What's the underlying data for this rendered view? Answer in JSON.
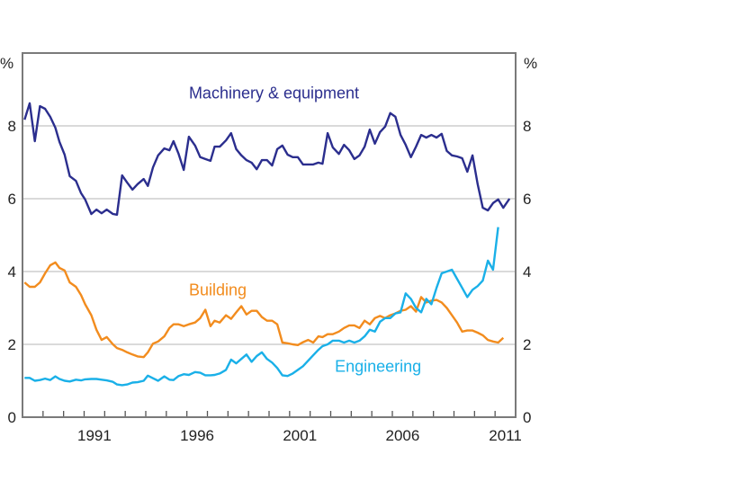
{
  "chart_data": {
    "type": "line",
    "title": "",
    "xlabel": "",
    "ylabel": "%",
    "ylabel_right": "%",
    "xlim": [
      1988.0,
      2012.0
    ],
    "ylim": [
      0,
      10
    ],
    "y_ticks": [
      0,
      2,
      4,
      6,
      8
    ],
    "y_tick_labels": [
      "0",
      "2",
      "4",
      "6",
      "8"
    ],
    "x_tick_labels": [
      {
        "label": "1991",
        "year": 1991
      },
      {
        "label": "1996",
        "year": 1996
      },
      {
        "label": "2001",
        "year": 2001
      },
      {
        "label": "2006",
        "year": 2006
      },
      {
        "label": "2011",
        "year": 2011
      }
    ],
    "x_minor_ticks_every_year": true,
    "grid": "horizontal",
    "legend": "inline labels",
    "series": [
      {
        "name": "Machinery & equipment",
        "color": "#2b2e8e",
        "label_anchor": [
          1996.1,
          8.75
        ],
        "points": [
          [
            1988.1,
            8.17
          ],
          [
            1988.35,
            8.62
          ],
          [
            1988.6,
            7.58
          ],
          [
            1988.85,
            8.54
          ],
          [
            1989.1,
            8.47
          ],
          [
            1989.35,
            8.25
          ],
          [
            1989.6,
            7.95
          ],
          [
            1989.8,
            7.56
          ],
          [
            1990.05,
            7.21
          ],
          [
            1990.3,
            6.62
          ],
          [
            1990.6,
            6.49
          ],
          [
            1990.85,
            6.15
          ],
          [
            1991.05,
            5.98
          ],
          [
            1991.35,
            5.58
          ],
          [
            1991.6,
            5.7
          ],
          [
            1991.85,
            5.6
          ],
          [
            1992.1,
            5.7
          ],
          [
            1992.4,
            5.58
          ],
          [
            1992.6,
            5.56
          ],
          [
            1992.85,
            6.64
          ],
          [
            1993.1,
            6.44
          ],
          [
            1993.35,
            6.25
          ],
          [
            1993.6,
            6.4
          ],
          [
            1993.9,
            6.54
          ],
          [
            1994.1,
            6.35
          ],
          [
            1994.35,
            6.86
          ],
          [
            1994.6,
            7.19
          ],
          [
            1994.9,
            7.38
          ],
          [
            1995.15,
            7.33
          ],
          [
            1995.35,
            7.58
          ],
          [
            1995.6,
            7.23
          ],
          [
            1995.85,
            6.79
          ],
          [
            1996.1,
            7.7
          ],
          [
            1996.4,
            7.46
          ],
          [
            1996.65,
            7.14
          ],
          [
            1996.9,
            7.09
          ],
          [
            1997.15,
            7.04
          ],
          [
            1997.35,
            7.43
          ],
          [
            1997.6,
            7.43
          ],
          [
            1997.9,
            7.6
          ],
          [
            1998.15,
            7.8
          ],
          [
            1998.4,
            7.36
          ],
          [
            1998.65,
            7.19
          ],
          [
            1998.9,
            7.06
          ],
          [
            1999.15,
            6.99
          ],
          [
            1999.4,
            6.81
          ],
          [
            1999.65,
            7.06
          ],
          [
            1999.9,
            7.06
          ],
          [
            2000.15,
            6.91
          ],
          [
            2000.4,
            7.36
          ],
          [
            2000.65,
            7.46
          ],
          [
            2000.9,
            7.21
          ],
          [
            2001.15,
            7.14
          ],
          [
            2001.4,
            7.14
          ],
          [
            2001.65,
            6.94
          ],
          [
            2001.9,
            6.94
          ],
          [
            2002.15,
            6.94
          ],
          [
            2002.4,
            6.99
          ],
          [
            2002.6,
            6.96
          ],
          [
            2002.85,
            7.8
          ],
          [
            2003.1,
            7.41
          ],
          [
            2003.4,
            7.23
          ],
          [
            2003.65,
            7.48
          ],
          [
            2003.9,
            7.33
          ],
          [
            2004.15,
            7.09
          ],
          [
            2004.4,
            7.19
          ],
          [
            2004.65,
            7.43
          ],
          [
            2004.9,
            7.9
          ],
          [
            2005.15,
            7.51
          ],
          [
            2005.4,
            7.83
          ],
          [
            2005.65,
            7.98
          ],
          [
            2005.9,
            8.35
          ],
          [
            2006.15,
            8.25
          ],
          [
            2006.4,
            7.75
          ],
          [
            2006.65,
            7.48
          ],
          [
            2006.9,
            7.14
          ],
          [
            2007.15,
            7.43
          ],
          [
            2007.4,
            7.75
          ],
          [
            2007.65,
            7.68
          ],
          [
            2007.9,
            7.75
          ],
          [
            2008.15,
            7.68
          ],
          [
            2008.4,
            7.78
          ],
          [
            2008.65,
            7.31
          ],
          [
            2008.9,
            7.19
          ],
          [
            2009.15,
            7.16
          ],
          [
            2009.4,
            7.11
          ],
          [
            2009.65,
            6.74
          ],
          [
            2009.9,
            7.19
          ],
          [
            2010.15,
            6.4
          ],
          [
            2010.4,
            5.75
          ],
          [
            2010.65,
            5.68
          ],
          [
            2010.9,
            5.88
          ],
          [
            2011.15,
            5.98
          ],
          [
            2011.4,
            5.75
          ],
          [
            2011.7,
            6.0
          ]
        ]
      },
      {
        "name": "Building",
        "color": "#f28c1e",
        "label_anchor": [
          1996.1,
          3.35
        ],
        "points": [
          [
            1988.1,
            3.7
          ],
          [
            1988.35,
            3.58
          ],
          [
            1988.6,
            3.58
          ],
          [
            1988.85,
            3.7
          ],
          [
            1989.1,
            3.95
          ],
          [
            1989.35,
            4.17
          ],
          [
            1989.6,
            4.25
          ],
          [
            1989.8,
            4.1
          ],
          [
            1990.05,
            4.03
          ],
          [
            1990.3,
            3.7
          ],
          [
            1990.6,
            3.58
          ],
          [
            1990.85,
            3.35
          ],
          [
            1991.05,
            3.1
          ],
          [
            1991.35,
            2.8
          ],
          [
            1991.6,
            2.4
          ],
          [
            1991.85,
            2.12
          ],
          [
            1992.1,
            2.2
          ],
          [
            1992.4,
            2.0
          ],
          [
            1992.6,
            1.9
          ],
          [
            1992.85,
            1.85
          ],
          [
            1993.1,
            1.78
          ],
          [
            1993.35,
            1.72
          ],
          [
            1993.6,
            1.67
          ],
          [
            1993.9,
            1.65
          ],
          [
            1994.1,
            1.78
          ],
          [
            1994.35,
            2.02
          ],
          [
            1994.6,
            2.08
          ],
          [
            1994.9,
            2.22
          ],
          [
            1995.15,
            2.45
          ],
          [
            1995.35,
            2.55
          ],
          [
            1995.6,
            2.55
          ],
          [
            1995.85,
            2.5
          ],
          [
            1996.1,
            2.55
          ],
          [
            1996.4,
            2.6
          ],
          [
            1996.65,
            2.72
          ],
          [
            1996.9,
            2.95
          ],
          [
            1997.15,
            2.5
          ],
          [
            1997.35,
            2.65
          ],
          [
            1997.6,
            2.6
          ],
          [
            1997.9,
            2.8
          ],
          [
            1998.15,
            2.7
          ],
          [
            1998.4,
            2.88
          ],
          [
            1998.65,
            3.05
          ],
          [
            1998.9,
            2.82
          ],
          [
            1999.15,
            2.92
          ],
          [
            1999.4,
            2.92
          ],
          [
            1999.65,
            2.75
          ],
          [
            1999.9,
            2.65
          ],
          [
            2000.15,
            2.65
          ],
          [
            2000.4,
            2.55
          ],
          [
            2000.65,
            2.05
          ],
          [
            2000.9,
            2.03
          ],
          [
            2001.15,
            2.0
          ],
          [
            2001.4,
            1.98
          ],
          [
            2001.65,
            2.06
          ],
          [
            2001.9,
            2.12
          ],
          [
            2002.15,
            2.05
          ],
          [
            2002.4,
            2.22
          ],
          [
            2002.6,
            2.2
          ],
          [
            2002.85,
            2.28
          ],
          [
            2003.1,
            2.28
          ],
          [
            2003.4,
            2.35
          ],
          [
            2003.65,
            2.45
          ],
          [
            2003.9,
            2.52
          ],
          [
            2004.15,
            2.52
          ],
          [
            2004.4,
            2.45
          ],
          [
            2004.65,
            2.65
          ],
          [
            2004.9,
            2.55
          ],
          [
            2005.15,
            2.72
          ],
          [
            2005.4,
            2.78
          ],
          [
            2005.65,
            2.72
          ],
          [
            2005.9,
            2.8
          ],
          [
            2006.15,
            2.85
          ],
          [
            2006.4,
            2.92
          ],
          [
            2006.65,
            2.95
          ],
          [
            2006.9,
            3.05
          ],
          [
            2007.15,
            2.9
          ],
          [
            2007.4,
            3.3
          ],
          [
            2007.65,
            3.15
          ],
          [
            2007.9,
            3.2
          ],
          [
            2008.15,
            3.22
          ],
          [
            2008.4,
            3.15
          ],
          [
            2008.65,
            3.0
          ],
          [
            2008.9,
            2.8
          ],
          [
            2009.15,
            2.6
          ],
          [
            2009.4,
            2.35
          ],
          [
            2009.65,
            2.38
          ],
          [
            2009.9,
            2.38
          ],
          [
            2010.15,
            2.32
          ],
          [
            2010.4,
            2.25
          ],
          [
            2010.65,
            2.12
          ],
          [
            2010.9,
            2.08
          ],
          [
            2011.15,
            2.05
          ],
          [
            2011.4,
            2.18
          ]
        ]
      },
      {
        "name": "Engineering",
        "color": "#1ab0e8",
        "label_anchor": [
          2003.2,
          1.25
        ],
        "points": [
          [
            1988.1,
            1.08
          ],
          [
            1988.35,
            1.08
          ],
          [
            1988.6,
            1.0
          ],
          [
            1988.85,
            1.02
          ],
          [
            1989.1,
            1.06
          ],
          [
            1989.35,
            1.02
          ],
          [
            1989.6,
            1.12
          ],
          [
            1989.8,
            1.05
          ],
          [
            1990.05,
            1.0
          ],
          [
            1990.3,
            0.98
          ],
          [
            1990.6,
            1.03
          ],
          [
            1990.85,
            1.01
          ],
          [
            1991.05,
            1.04
          ],
          [
            1991.35,
            1.05
          ],
          [
            1991.6,
            1.05
          ],
          [
            1991.85,
            1.03
          ],
          [
            1992.1,
            1.01
          ],
          [
            1992.4,
            0.97
          ],
          [
            1992.6,
            0.9
          ],
          [
            1992.85,
            0.88
          ],
          [
            1993.1,
            0.9
          ],
          [
            1993.35,
            0.95
          ],
          [
            1993.6,
            0.96
          ],
          [
            1993.9,
            1.0
          ],
          [
            1994.1,
            1.14
          ],
          [
            1994.35,
            1.07
          ],
          [
            1994.6,
            1.0
          ],
          [
            1994.9,
            1.12
          ],
          [
            1995.15,
            1.03
          ],
          [
            1995.35,
            1.02
          ],
          [
            1995.6,
            1.13
          ],
          [
            1995.85,
            1.18
          ],
          [
            1996.1,
            1.16
          ],
          [
            1996.4,
            1.24
          ],
          [
            1996.65,
            1.22
          ],
          [
            1996.9,
            1.15
          ],
          [
            1997.15,
            1.15
          ],
          [
            1997.35,
            1.16
          ],
          [
            1997.6,
            1.2
          ],
          [
            1997.9,
            1.3
          ],
          [
            1998.15,
            1.58
          ],
          [
            1998.4,
            1.48
          ],
          [
            1998.65,
            1.6
          ],
          [
            1998.9,
            1.72
          ],
          [
            1999.15,
            1.52
          ],
          [
            1999.4,
            1.68
          ],
          [
            1999.65,
            1.78
          ],
          [
            1999.9,
            1.6
          ],
          [
            2000.15,
            1.5
          ],
          [
            2000.4,
            1.35
          ],
          [
            2000.65,
            1.15
          ],
          [
            2000.9,
            1.13
          ],
          [
            2001.15,
            1.2
          ],
          [
            2001.4,
            1.3
          ],
          [
            2001.65,
            1.4
          ],
          [
            2001.9,
            1.55
          ],
          [
            2002.15,
            1.7
          ],
          [
            2002.4,
            1.85
          ],
          [
            2002.6,
            1.95
          ],
          [
            2002.85,
            2.0
          ],
          [
            2003.1,
            2.1
          ],
          [
            2003.4,
            2.1
          ],
          [
            2003.65,
            2.05
          ],
          [
            2003.9,
            2.1
          ],
          [
            2004.15,
            2.05
          ],
          [
            2004.4,
            2.1
          ],
          [
            2004.65,
            2.22
          ],
          [
            2004.9,
            2.4
          ],
          [
            2005.15,
            2.35
          ],
          [
            2005.4,
            2.62
          ],
          [
            2005.65,
            2.72
          ],
          [
            2005.9,
            2.72
          ],
          [
            2006.15,
            2.85
          ],
          [
            2006.4,
            2.88
          ],
          [
            2006.65,
            3.4
          ],
          [
            2006.9,
            3.25
          ],
          [
            2007.15,
            3.0
          ],
          [
            2007.4,
            2.88
          ],
          [
            2007.65,
            3.25
          ],
          [
            2007.9,
            3.1
          ],
          [
            2008.15,
            3.55
          ],
          [
            2008.4,
            3.95
          ],
          [
            2008.65,
            4.0
          ],
          [
            2008.9,
            4.05
          ],
          [
            2009.15,
            3.8
          ],
          [
            2009.4,
            3.55
          ],
          [
            2009.65,
            3.3
          ],
          [
            2009.9,
            3.5
          ],
          [
            2010.15,
            3.6
          ],
          [
            2010.4,
            3.75
          ],
          [
            2010.65,
            4.3
          ],
          [
            2010.9,
            4.05
          ],
          [
            2011.15,
            5.22
          ]
        ]
      }
    ]
  }
}
